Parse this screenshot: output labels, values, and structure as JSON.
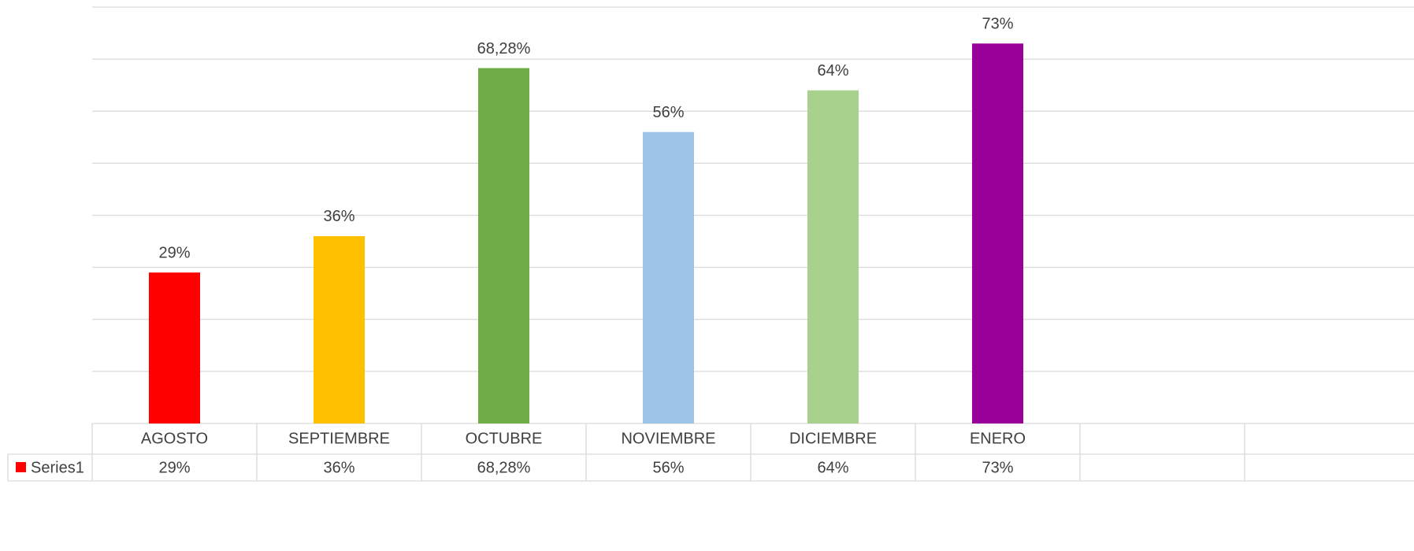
{
  "chart_data": {
    "type": "bar",
    "categories": [
      "AGOSTO",
      "SEPTIEMBRE",
      "OCTUBRE",
      "NOVIEMBRE",
      "DICIEMBRE",
      "ENERO",
      null
    ],
    "series": [
      {
        "name": "Series1",
        "color": "#ff0000",
        "values": [
          29,
          36,
          68.28,
          56,
          64,
          73,
          null
        ],
        "value_labels": [
          "29%",
          "36%",
          "68,28%",
          "56%",
          "64%",
          "73%",
          null
        ],
        "colors": [
          "#ff0000",
          "#ffc000",
          "#70ad47",
          "#9dc3e6",
          "#a9d18e",
          "#990099",
          null
        ]
      }
    ],
    "ylim": [
      0,
      80
    ],
    "yticks": [
      0,
      10,
      20,
      30,
      40,
      50,
      60,
      70,
      80
    ],
    "grid": true
  }
}
